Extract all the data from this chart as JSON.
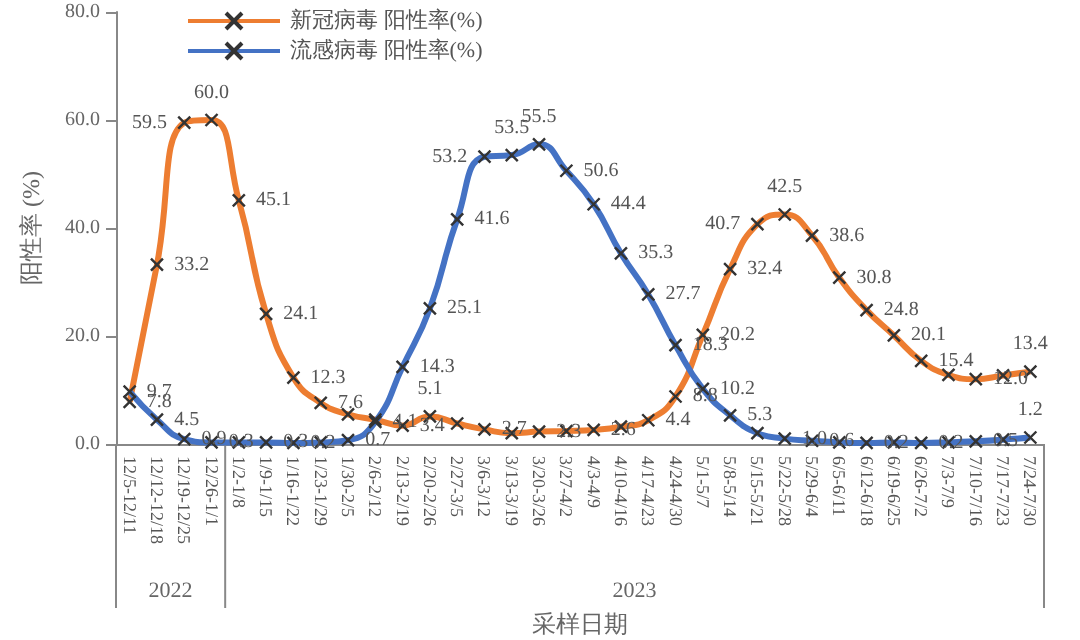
{
  "chart_data": {
    "type": "line",
    "xlabel": "采样日期",
    "ylabel": "阳性率 (%)",
    "categories": [
      "12/5-12/11",
      "12/12-12/18",
      "12/19-12/25",
      "12/26-1/1",
      "1/2-1/8",
      "1/9-1/15",
      "1/16-1/22",
      "1/23-1/29",
      "1/30-2/5",
      "2/6-2/12",
      "2/13-2/19",
      "2/20-2/26",
      "2/27-3/5",
      "3/6-3/12",
      "3/13-3/19",
      "3/20-3/26",
      "3/27-4/2",
      "4/3-4/9",
      "4/10-4/16",
      "4/17-4/23",
      "4/24-4/30",
      "5/1-5/7",
      "5/8-5/14",
      "5/15-5/21",
      "5/22-5/28",
      "5/29-6/4",
      "6/5-6/11",
      "6/12-6/18",
      "6/19-6/25",
      "6/26-7/2",
      "7/3-7/9",
      "7/10-7/16",
      "7/17-7/23",
      "7/24-7/30"
    ],
    "series": [
      {
        "name": "新冠病毒 阳性率(%)",
        "color": "#ed7d31",
        "values": [
          7.8,
          33.2,
          59.5,
          60.0,
          45.1,
          24.1,
          12.3,
          7.6,
          5.5,
          4.5,
          3.4,
          5.1,
          3.8,
          2.7,
          2.0,
          2.3,
          2.4,
          2.6,
          3.2,
          4.4,
          8.8,
          20.2,
          32.4,
          40.7,
          42.5,
          38.6,
          30.8,
          24.8,
          20.1,
          15.4,
          12.8,
          12.0,
          12.7,
          13.4
        ],
        "value_labels": [
          "7.8",
          "33.2",
          "59.5",
          "60.0",
          "45.1",
          "24.1",
          "12.3",
          "7.6",
          null,
          null,
          "3.4",
          "5.1",
          null,
          "2.7",
          null,
          "2.3",
          null,
          "2.6",
          null,
          "4.4",
          "8.8",
          "20.2",
          "32.4",
          "40.7",
          "42.5",
          "38.6",
          "30.8",
          "24.8",
          "20.1",
          "15.4",
          null,
          "12.0",
          null,
          "13.4"
        ]
      },
      {
        "name": "流感病毒 阳性率(%)",
        "color": "#4472c4",
        "values": [
          9.7,
          4.5,
          0.9,
          0.3,
          0.3,
          0.3,
          0.2,
          0.3,
          0.7,
          4.1,
          14.3,
          25.1,
          41.6,
          53.2,
          53.5,
          55.5,
          50.6,
          44.4,
          35.3,
          27.7,
          18.3,
          10.2,
          5.3,
          2.0,
          1.0,
          0.6,
          0.3,
          0.2,
          0.3,
          0.2,
          0.3,
          0.5,
          0.8,
          1.2
        ],
        "value_labels": [
          "9.7",
          "4.5",
          "0.9",
          "0.3",
          null,
          "0.3",
          "0.2",
          null,
          "0.7",
          "4.1",
          "14.3",
          "25.1",
          "41.6",
          "53.2",
          "53.5",
          "55.5",
          "50.6",
          "44.4",
          "35.3",
          "27.7",
          "18.3",
          "10.2",
          "5.3",
          null,
          "1.0",
          "0.6",
          null,
          "0.2",
          null,
          "0.2",
          null,
          "0.5",
          null,
          "1.2"
        ]
      }
    ],
    "ylim": [
      0,
      80
    ],
    "yticks": [
      {
        "value": 0,
        "label": "0.0"
      },
      {
        "value": 20,
        "label": "20.0"
      },
      {
        "value": 40,
        "label": "40.0"
      },
      {
        "value": 60,
        "label": "60.0"
      },
      {
        "value": 80,
        "label": "80.0"
      }
    ],
    "annotations": [
      "2022",
      "2023"
    ],
    "grid": false,
    "legend": "top left",
    "marker": "cross",
    "line_style": "solid"
  }
}
